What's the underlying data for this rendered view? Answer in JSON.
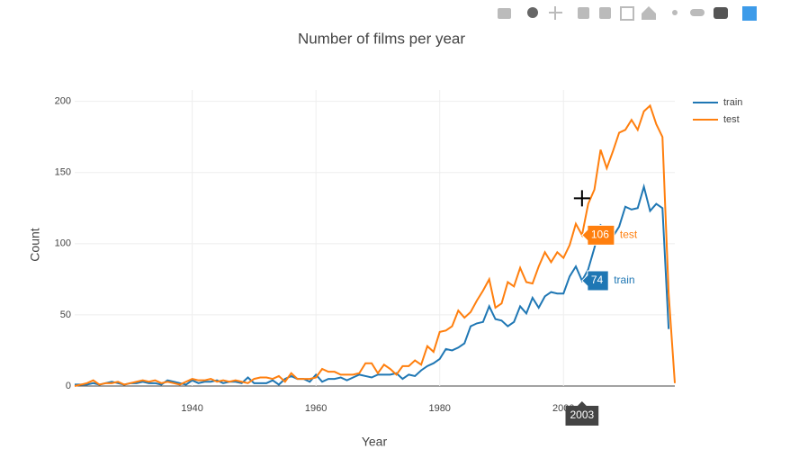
{
  "chart_data": {
    "type": "line",
    "title": "Number of films per year",
    "xlabel": "Year",
    "ylabel": "Count",
    "x": [
      1921,
      1922,
      1923,
      1924,
      1925,
      1926,
      1927,
      1928,
      1929,
      1930,
      1931,
      1932,
      1933,
      1934,
      1935,
      1936,
      1937,
      1938,
      1939,
      1940,
      1941,
      1942,
      1943,
      1944,
      1945,
      1946,
      1947,
      1948,
      1949,
      1950,
      1951,
      1952,
      1953,
      1954,
      1955,
      1956,
      1957,
      1958,
      1959,
      1960,
      1961,
      1962,
      1963,
      1964,
      1965,
      1966,
      1967,
      1968,
      1969,
      1970,
      1971,
      1972,
      1973,
      1974,
      1975,
      1976,
      1977,
      1978,
      1979,
      1980,
      1981,
      1982,
      1983,
      1984,
      1985,
      1986,
      1987,
      1988,
      1989,
      1990,
      1991,
      1992,
      1993,
      1994,
      1995,
      1996,
      1997,
      1998,
      1999,
      2000,
      2001,
      2002,
      2003,
      2004,
      2005,
      2006,
      2007,
      2008,
      2009,
      2010,
      2011,
      2012,
      2013,
      2014,
      2015,
      2016,
      2017,
      2018
    ],
    "series": [
      {
        "name": "train",
        "color": "#1f77b4",
        "values": [
          1,
          1,
          1,
          2,
          1,
          2,
          3,
          2,
          1,
          2,
          2,
          3,
          2,
          2,
          1,
          4,
          3,
          2,
          1,
          4,
          2,
          3,
          3,
          4,
          2,
          3,
          3,
          2,
          6,
          2,
          2,
          2,
          4,
          1,
          5,
          7,
          5,
          5,
          3,
          8,
          3,
          5,
          5,
          6,
          4,
          6,
          8,
          7,
          6,
          8,
          8,
          8,
          9,
          5,
          8,
          7,
          11,
          14,
          16,
          19,
          26,
          25,
          27,
          30,
          42,
          44,
          45,
          56,
          47,
          46,
          42,
          45,
          56,
          51,
          62,
          55,
          63,
          66,
          65,
          65,
          77,
          84,
          74,
          82,
          97,
          113,
          110,
          105,
          112,
          126,
          124,
          125,
          140,
          123,
          128,
          125,
          40,
          null
        ]
      },
      {
        "name": "test",
        "color": "#ff7f0e",
        "values": [
          0,
          1,
          2,
          4,
          1,
          2,
          2,
          3,
          1,
          2,
          3,
          4,
          3,
          4,
          2,
          3,
          2,
          1,
          3,
          5,
          4,
          4,
          5,
          3,
          4,
          3,
          4,
          3,
          2,
          5,
          6,
          6,
          5,
          7,
          3,
          9,
          5,
          5,
          5,
          6,
          12,
          10,
          10,
          8,
          8,
          8,
          9,
          16,
          16,
          9,
          15,
          12,
          8,
          14,
          14,
          18,
          15,
          28,
          24,
          38,
          39,
          42,
          53,
          48,
          52,
          60,
          67,
          75,
          55,
          58,
          73,
          70,
          83,
          73,
          72,
          84,
          94,
          87,
          94,
          90,
          99,
          114,
          106,
          128,
          138,
          166,
          153,
          165,
          178,
          180,
          187,
          180,
          193,
          197,
          184,
          175,
          65,
          2
        ]
      }
    ],
    "xlim": [
      1921,
      2018
    ],
    "ylim": [
      0,
      208
    ],
    "xticks": [
      1940,
      1960,
      1980,
      2000
    ],
    "yticks": [
      0,
      50,
      100,
      150,
      200
    ],
    "grid": true,
    "legend": "right",
    "hover_index": 82
  }
}
